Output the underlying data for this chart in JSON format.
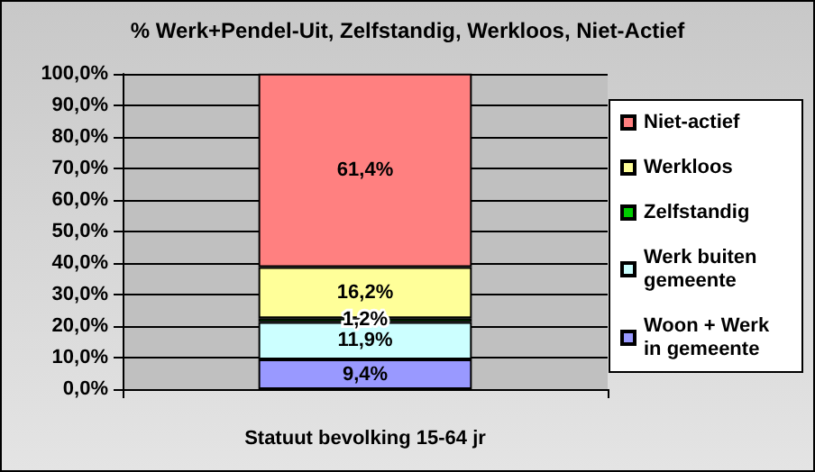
{
  "chart_data": {
    "type": "bar",
    "stacked": true,
    "title": "% Werk+Pendel-Uit, Zelfstandig, Werkloos, Niet-Actief",
    "categories": [
      "Statuut bevolking 15-64 jr"
    ],
    "series": [
      {
        "name": "Woon + Werk in gemeente",
        "color": "#9999ff",
        "values": [
          9.4
        ],
        "value_labels": [
          "9,4%"
        ]
      },
      {
        "name": "Werk buiten gemeente",
        "color": "#ccffff",
        "values": [
          11.9
        ],
        "value_labels": [
          "11,9%"
        ]
      },
      {
        "name": "Zelfstandig",
        "color": "#00cc00",
        "values": [
          1.2
        ],
        "value_labels": [
          "1,2%"
        ]
      },
      {
        "name": "Werkloos",
        "color": "#ffff99",
        "values": [
          16.2
        ],
        "value_labels": [
          "16,2%"
        ]
      },
      {
        "name": "Niet-actief",
        "color": "#ff8080",
        "values": [
          61.4
        ],
        "value_labels": [
          "61,4%"
        ]
      }
    ],
    "ylim": [
      0,
      100
    ],
    "yticks": [
      {
        "value": 0,
        "label": "0,0%"
      },
      {
        "value": 10,
        "label": "10,0%"
      },
      {
        "value": 20,
        "label": "20,0%"
      },
      {
        "value": 30,
        "label": "30,0%"
      },
      {
        "value": 40,
        "label": "40,0%"
      },
      {
        "value": 50,
        "label": "50,0%"
      },
      {
        "value": 60,
        "label": "60,0%"
      },
      {
        "value": 70,
        "label": "70,0%"
      },
      {
        "value": 80,
        "label": "80,0%"
      },
      {
        "value": 90,
        "label": "90,0%"
      },
      {
        "value": 100,
        "label": "100,0%"
      }
    ],
    "grid": "y",
    "legend": "right"
  }
}
